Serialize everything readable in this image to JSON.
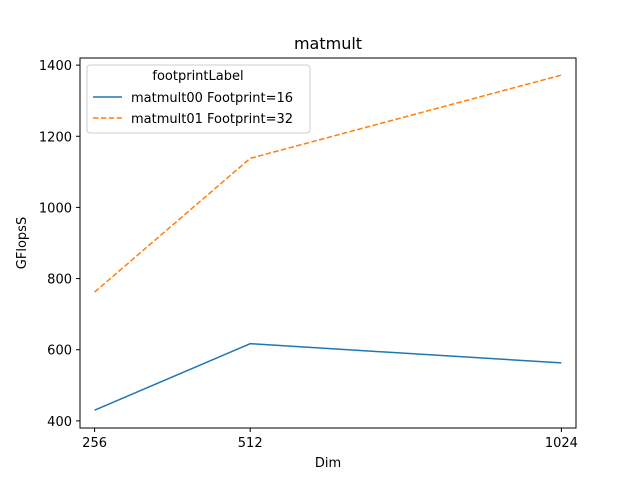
{
  "chart_data": {
    "type": "line",
    "title": "matmult",
    "xlabel": "Dim",
    "ylabel": "GFlopsS",
    "x": [
      256,
      512,
      1024
    ],
    "x_ticks": [
      "256",
      "512",
      "1024"
    ],
    "xlim": [
      232,
      1048
    ],
    "ylim": [
      380,
      1420
    ],
    "y_ticks": [
      400,
      600,
      800,
      1000,
      1200,
      1400
    ],
    "legend": {
      "title": "footprintLabel",
      "placement": "upper-left"
    },
    "series": [
      {
        "name": "matmult00 Footprint=16",
        "values": [
          430,
          617,
          563
        ],
        "color": "#1f77b4",
        "dashed": false
      },
      {
        "name": "matmult01 Footprint=32",
        "values": [
          762,
          1138,
          1372
        ],
        "color": "#ff7f0e",
        "dashed": true
      }
    ]
  }
}
